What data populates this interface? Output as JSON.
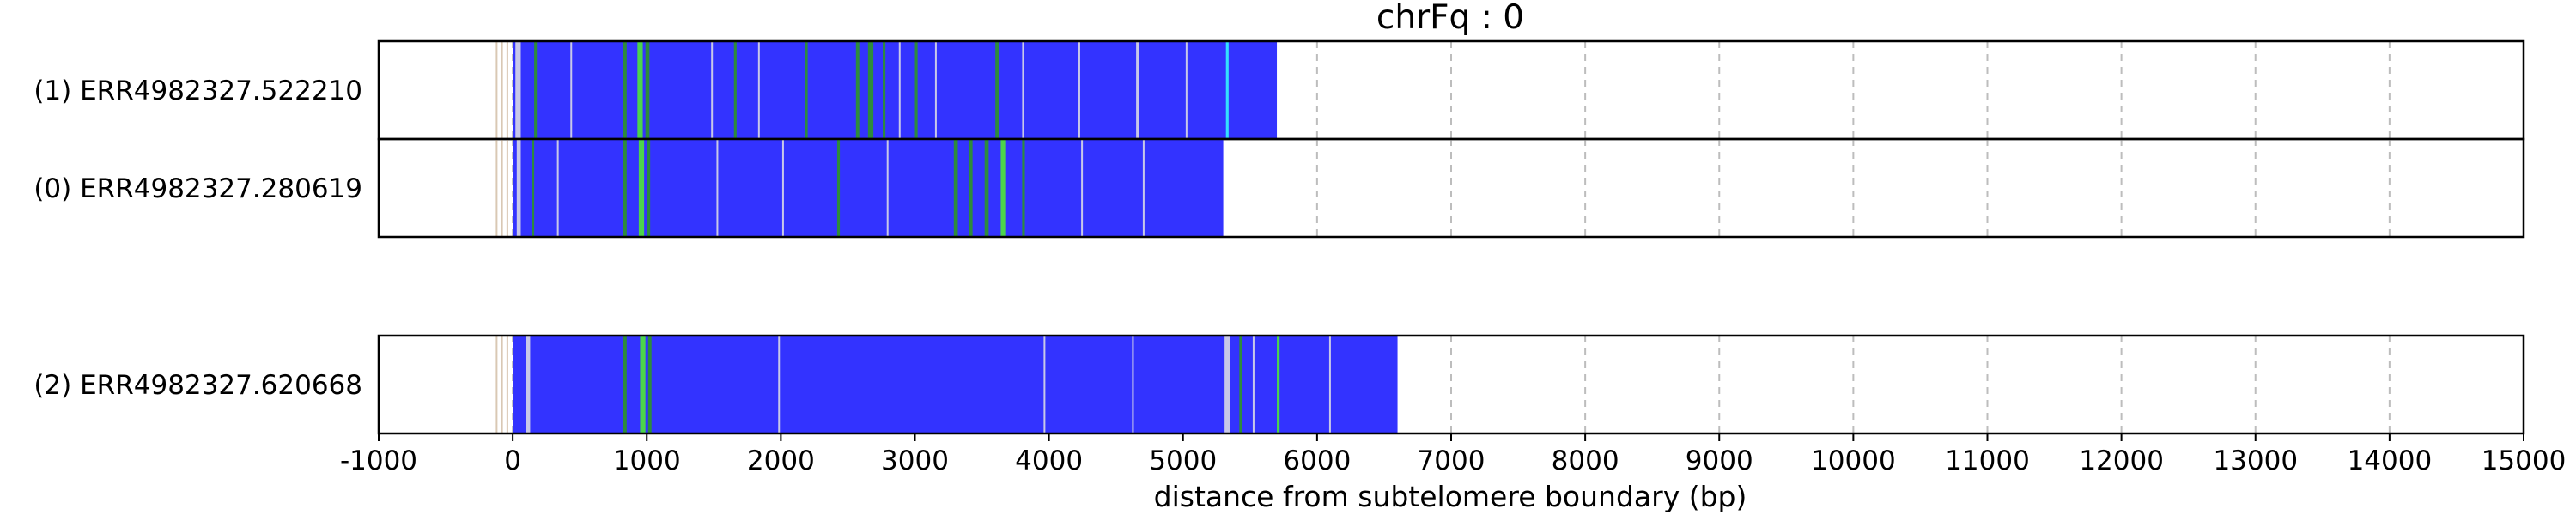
{
  "chart_data": {
    "type": "bar",
    "title": "chrFq : 0",
    "xlabel": "distance from subtelomere boundary (bp)",
    "xlim": [
      -1000,
      15000
    ],
    "xticks": [
      -1000,
      0,
      1000,
      2000,
      3000,
      4000,
      5000,
      6000,
      7000,
      8000,
      9000,
      10000,
      11000,
      12000,
      13000,
      14000,
      15000
    ],
    "grid": true,
    "colors": {
      "main": "#3333ff",
      "variant_light": "#c8c8e8",
      "variant_green": "#2e8b3c",
      "variant_bright_green": "#4cd44c",
      "pre_boundary": "#d9c8b4",
      "cyan": "#33e0ff"
    },
    "reads": [
      {
        "label": "(1) ERR4982327.522210",
        "start": 0,
        "end": 5700,
        "pre_lines": [
          -120,
          -80,
          -40
        ],
        "features": [
          {
            "pos": 20,
            "width": 40,
            "kind": "variant_light"
          },
          {
            "pos": 160,
            "width": 20,
            "kind": "variant_green"
          },
          {
            "pos": 430,
            "width": 10,
            "kind": "variant_light"
          },
          {
            "pos": 820,
            "width": 30,
            "kind": "variant_green"
          },
          {
            "pos": 930,
            "width": 40,
            "kind": "variant_bright_green"
          },
          {
            "pos": 990,
            "width": 30,
            "kind": "variant_green"
          },
          {
            "pos": 1480,
            "width": 12,
            "kind": "variant_light"
          },
          {
            "pos": 1650,
            "width": 20,
            "kind": "variant_green"
          },
          {
            "pos": 1830,
            "width": 12,
            "kind": "variant_light"
          },
          {
            "pos": 2180,
            "width": 20,
            "kind": "variant_green"
          },
          {
            "pos": 2560,
            "width": 25,
            "kind": "variant_green"
          },
          {
            "pos": 2650,
            "width": 40,
            "kind": "variant_green"
          },
          {
            "pos": 2760,
            "width": 20,
            "kind": "variant_green"
          },
          {
            "pos": 2880,
            "width": 12,
            "kind": "variant_light"
          },
          {
            "pos": 3000,
            "width": 20,
            "kind": "variant_green"
          },
          {
            "pos": 3150,
            "width": 12,
            "kind": "variant_light"
          },
          {
            "pos": 3600,
            "width": 30,
            "kind": "variant_green"
          },
          {
            "pos": 3800,
            "width": 12,
            "kind": "variant_light"
          },
          {
            "pos": 4220,
            "width": 12,
            "kind": "variant_light"
          },
          {
            "pos": 4650,
            "width": 20,
            "kind": "variant_light"
          },
          {
            "pos": 5020,
            "width": 12,
            "kind": "variant_light"
          },
          {
            "pos": 5320,
            "width": 20,
            "kind": "cyan"
          }
        ]
      },
      {
        "label": "(0) ERR4982327.280619",
        "start": 0,
        "end": 5300,
        "pre_lines": [
          -120,
          -80,
          -40
        ],
        "features": [
          {
            "pos": 30,
            "width": 30,
            "kind": "variant_light"
          },
          {
            "pos": 140,
            "width": 20,
            "kind": "variant_green"
          },
          {
            "pos": 330,
            "width": 12,
            "kind": "variant_light"
          },
          {
            "pos": 820,
            "width": 30,
            "kind": "variant_green"
          },
          {
            "pos": 940,
            "width": 40,
            "kind": "variant_bright_green"
          },
          {
            "pos": 1000,
            "width": 25,
            "kind": "variant_green"
          },
          {
            "pos": 1520,
            "width": 12,
            "kind": "variant_light"
          },
          {
            "pos": 2010,
            "width": 12,
            "kind": "variant_light"
          },
          {
            "pos": 2420,
            "width": 20,
            "kind": "variant_green"
          },
          {
            "pos": 2790,
            "width": 12,
            "kind": "variant_light"
          },
          {
            "pos": 3290,
            "width": 30,
            "kind": "variant_green"
          },
          {
            "pos": 3400,
            "width": 30,
            "kind": "variant_green"
          },
          {
            "pos": 3520,
            "width": 30,
            "kind": "variant_green"
          },
          {
            "pos": 3640,
            "width": 40,
            "kind": "variant_bright_green"
          },
          {
            "pos": 3800,
            "width": 20,
            "kind": "variant_green"
          },
          {
            "pos": 4240,
            "width": 12,
            "kind": "variant_light"
          },
          {
            "pos": 4700,
            "width": 12,
            "kind": "variant_light"
          }
        ]
      },
      {
        "label": "(2) ERR4982327.620668",
        "start": 0,
        "end": 6600,
        "pre_lines": [
          -120,
          -80,
          -40
        ],
        "features": [
          {
            "pos": 100,
            "width": 30,
            "kind": "variant_light"
          },
          {
            "pos": 820,
            "width": 30,
            "kind": "variant_green"
          },
          {
            "pos": 950,
            "width": 40,
            "kind": "variant_bright_green"
          },
          {
            "pos": 1010,
            "width": 25,
            "kind": "variant_green"
          },
          {
            "pos": 1980,
            "width": 12,
            "kind": "variant_light"
          },
          {
            "pos": 3960,
            "width": 12,
            "kind": "variant_light"
          },
          {
            "pos": 4620,
            "width": 12,
            "kind": "variant_light"
          },
          {
            "pos": 5310,
            "width": 40,
            "kind": "variant_light"
          },
          {
            "pos": 5420,
            "width": 20,
            "kind": "variant_green"
          },
          {
            "pos": 5520,
            "width": 12,
            "kind": "variant_light"
          },
          {
            "pos": 5700,
            "width": 20,
            "kind": "variant_bright_green"
          },
          {
            "pos": 6090,
            "width": 12,
            "kind": "variant_light"
          }
        ]
      }
    ]
  }
}
